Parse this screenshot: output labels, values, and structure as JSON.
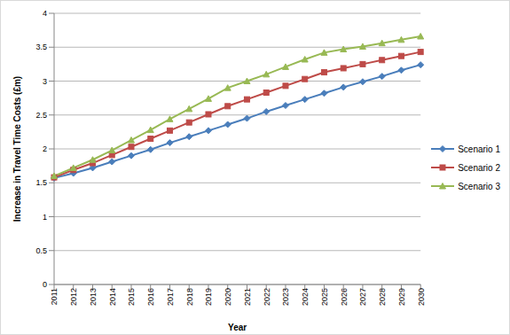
{
  "chart_data": {
    "type": "line",
    "x_label": "Year",
    "y_label": "Increase in Travel Time Costs (£m)",
    "categories": [
      "2011",
      "2012",
      "2013",
      "2014",
      "2015",
      "2016",
      "2017",
      "2018",
      "2019",
      "2020",
      "2021",
      "2022",
      "2023",
      "2024",
      "2025",
      "2026",
      "2027",
      "2028",
      "2029",
      "2030"
    ],
    "series": [
      {
        "name": "Scenario 1",
        "color": "#4A7EBB",
        "marker": "diamond",
        "values": [
          1.57,
          1.64,
          1.72,
          1.81,
          1.9,
          1.99,
          2.09,
          2.18,
          2.27,
          2.36,
          2.45,
          2.55,
          2.64,
          2.73,
          2.82,
          2.91,
          2.99,
          3.07,
          3.16,
          3.24
        ]
      },
      {
        "name": "Scenario 2",
        "color": "#BE4B48",
        "marker": "square",
        "values": [
          1.58,
          1.69,
          1.79,
          1.91,
          2.03,
          2.15,
          2.27,
          2.39,
          2.51,
          2.63,
          2.73,
          2.83,
          2.93,
          3.03,
          3.13,
          3.19,
          3.25,
          3.31,
          3.37,
          3.43
        ]
      },
      {
        "name": "Scenario 3",
        "color": "#98B954",
        "marker": "triangle",
        "values": [
          1.6,
          1.72,
          1.84,
          1.98,
          2.13,
          2.28,
          2.44,
          2.59,
          2.74,
          2.9,
          3.0,
          3.1,
          3.21,
          3.32,
          3.42,
          3.47,
          3.51,
          3.56,
          3.61,
          3.66
        ]
      }
    ],
    "ylim": [
      0,
      4
    ],
    "yticks": [
      0,
      0.5,
      1,
      1.5,
      2,
      2.5,
      3,
      3.5,
      4
    ],
    "grid": true,
    "legend": "right"
  }
}
